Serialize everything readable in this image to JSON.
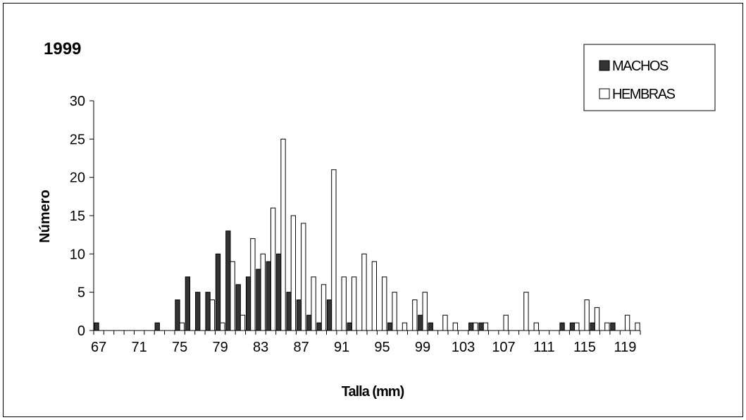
{
  "chart_data": {
    "type": "bar",
    "title": "1999",
    "xlabel": "Talla (mm)",
    "ylabel": "Número",
    "ylim": [
      0,
      30
    ],
    "yticks": [
      "0",
      "5",
      "10",
      "15",
      "20",
      "25",
      "30"
    ],
    "x": [
      67,
      68,
      69,
      70,
      71,
      72,
      73,
      74,
      75,
      76,
      77,
      78,
      79,
      80,
      81,
      82,
      83,
      84,
      85,
      86,
      87,
      88,
      89,
      90,
      91,
      92,
      93,
      94,
      95,
      96,
      97,
      98,
      99,
      100,
      101,
      102,
      103,
      104,
      105,
      106,
      107,
      108,
      109,
      110,
      111,
      112,
      113,
      114,
      115,
      116,
      117,
      118,
      119,
      120
    ],
    "xtick_labels": [
      "67",
      "71",
      "75",
      "79",
      "83",
      "87",
      "91",
      "95",
      "99",
      "103",
      "107",
      "111",
      "115",
      "119"
    ],
    "legend_position": "top-right",
    "grid": false,
    "series": [
      {
        "name": "MACHOS",
        "color": "#333333",
        "values": [
          1,
          0,
          0,
          0,
          0,
          0,
          1,
          0,
          4,
          7,
          5,
          5,
          10,
          13,
          6,
          7,
          8,
          9,
          10,
          5,
          4,
          2,
          1,
          4,
          0,
          1,
          0,
          0,
          0,
          1,
          0,
          0,
          2,
          1,
          0,
          0,
          0,
          1,
          1,
          0,
          0,
          0,
          0,
          0,
          0,
          0,
          1,
          1,
          0,
          1,
          0,
          1,
          0,
          0
        ]
      },
      {
        "name": "HEMBRAS",
        "color": "#ffffff",
        "values": [
          0,
          0,
          0,
          0,
          0,
          0,
          0,
          0,
          1,
          0,
          0,
          4,
          1,
          9,
          2,
          12,
          10,
          16,
          25,
          15,
          14,
          7,
          6,
          21,
          7,
          7,
          10,
          9,
          7,
          5,
          1,
          4,
          5,
          0,
          2,
          1,
          0,
          1,
          1,
          0,
          2,
          0,
          5,
          1,
          0,
          0,
          0,
          1,
          4,
          3,
          1,
          0,
          2,
          1
        ]
      }
    ]
  }
}
